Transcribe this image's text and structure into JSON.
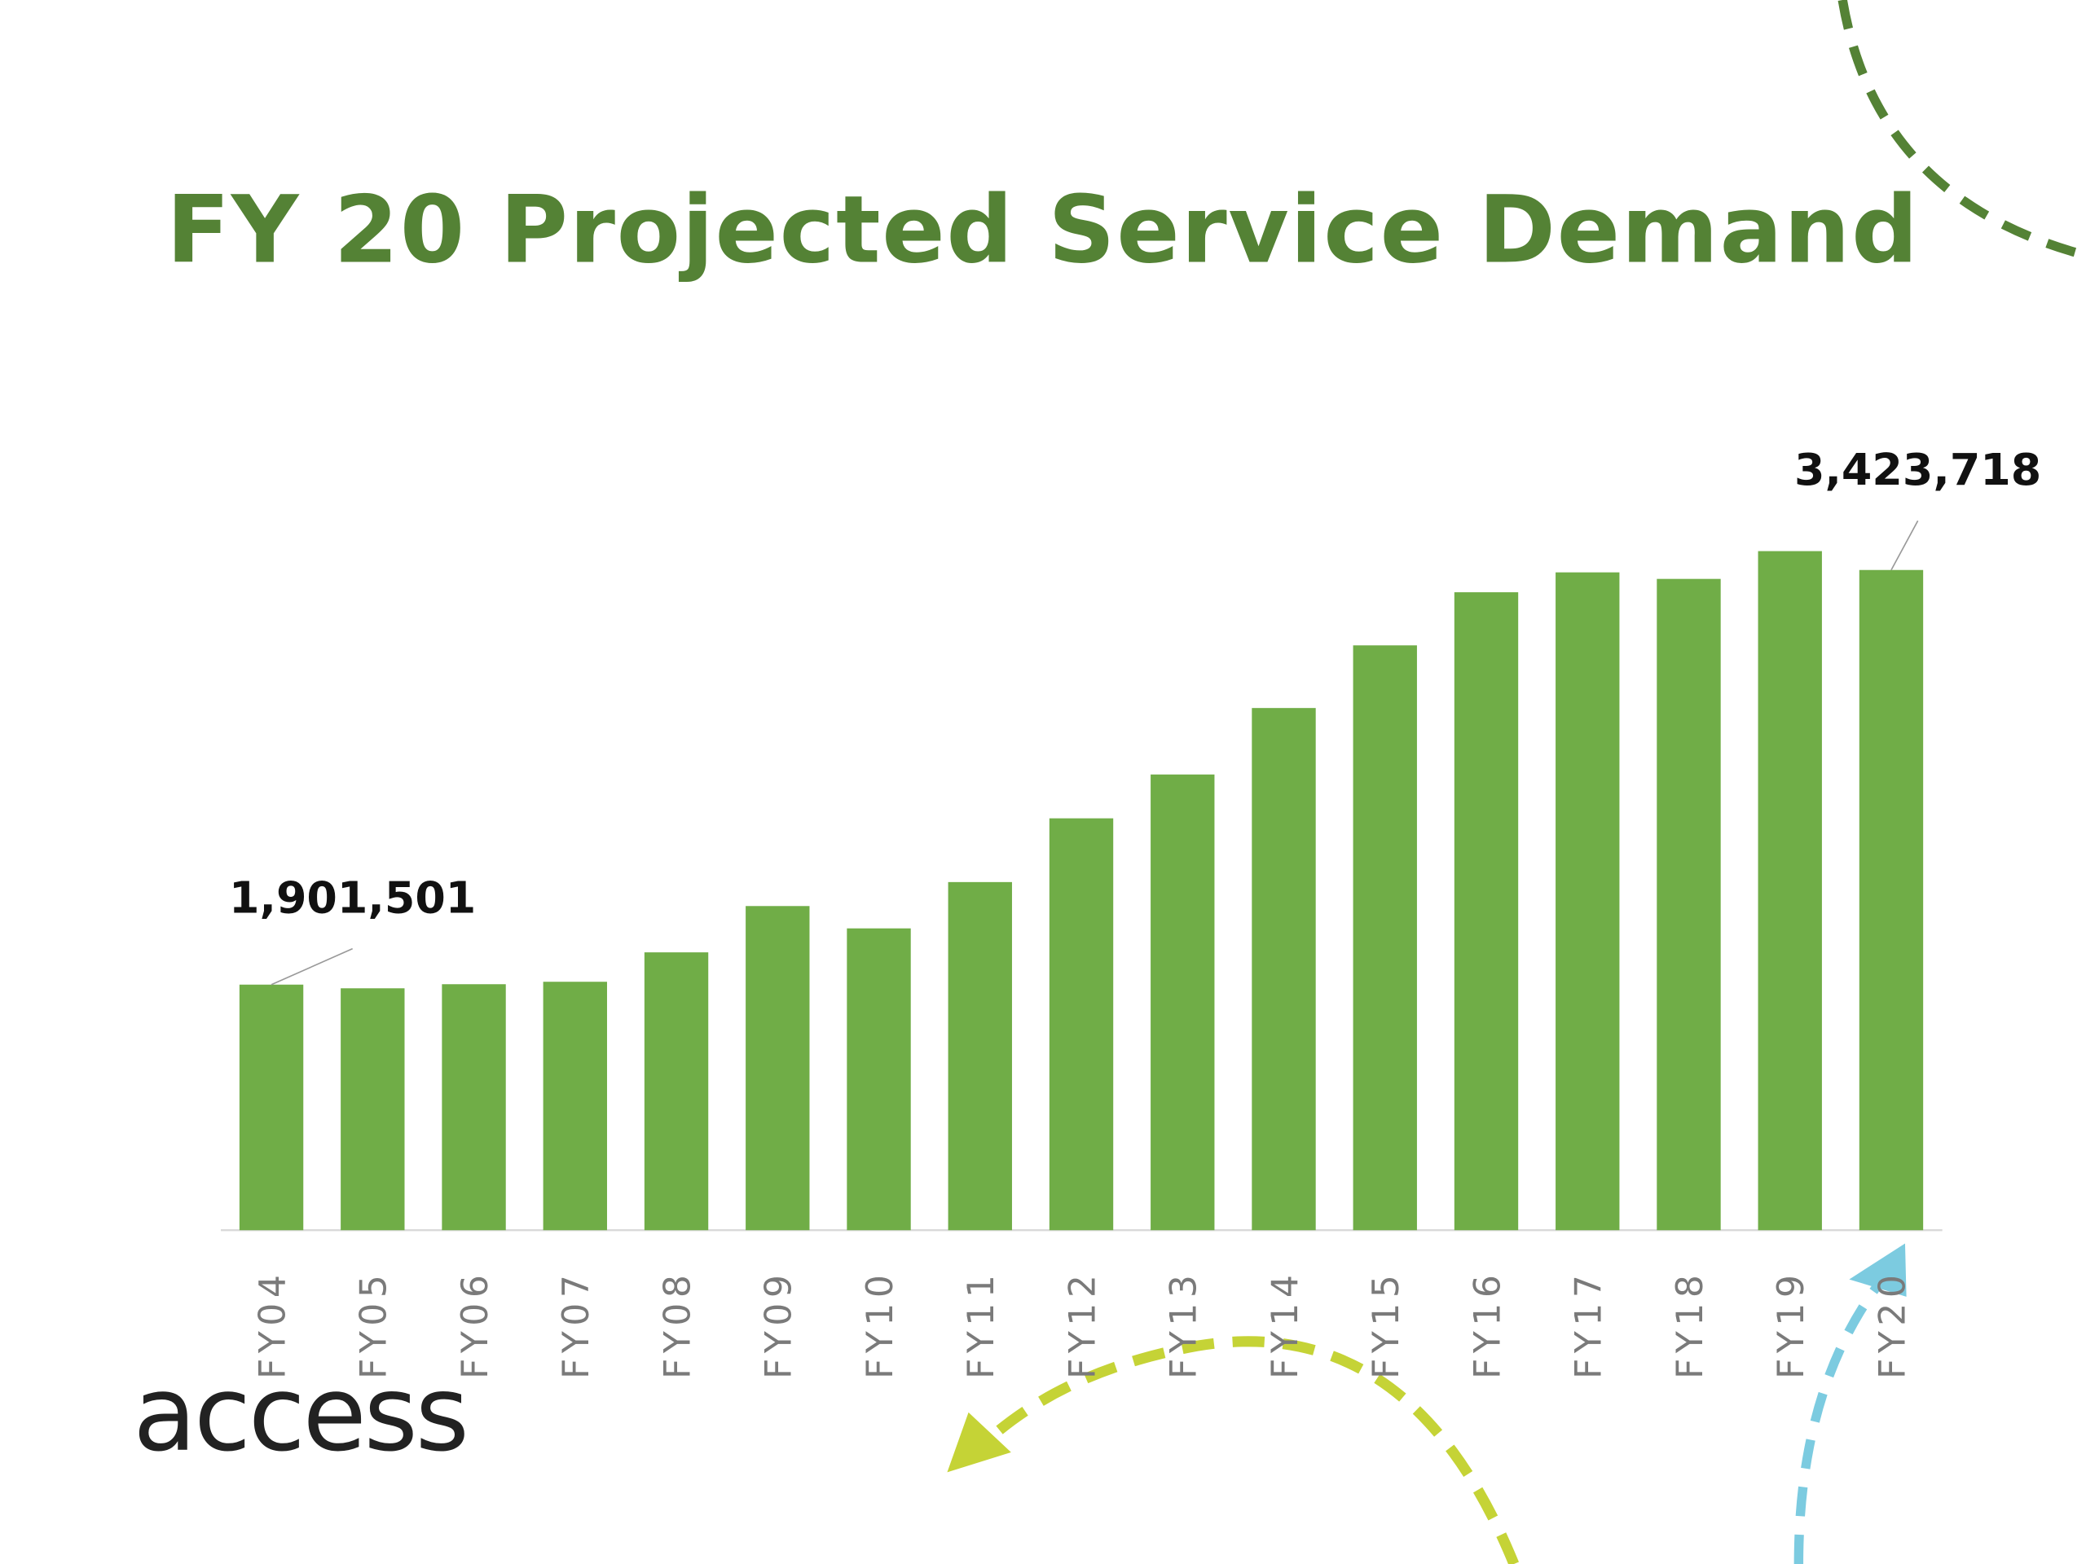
{
  "chart_data": {
    "type": "bar",
    "title": "FY 20 Projected Service Demand",
    "categories": [
      "FY04",
      "FY05",
      "FY06",
      "FY07",
      "FY08",
      "FY09",
      "FY10",
      "FY11",
      "FY12",
      "FY13",
      "FY14",
      "FY15",
      "FY16",
      "FY17",
      "FY18",
      "FY19",
      "FY20"
    ],
    "values": [
      1901501,
      1888000,
      1903000,
      1912000,
      2020000,
      2190000,
      2108000,
      2278000,
      2512000,
      2673000,
      2917000,
      3147000,
      3342000,
      3415000,
      3391000,
      3493000,
      3423718
    ],
    "value_labels": [
      "1,901,501",
      null,
      null,
      null,
      null,
      null,
      null,
      null,
      null,
      null,
      null,
      null,
      null,
      null,
      null,
      null,
      "3,423,718"
    ],
    "color": "#70ad47",
    "ylim": [
      1000000,
      3700000
    ]
  },
  "logo": "access"
}
